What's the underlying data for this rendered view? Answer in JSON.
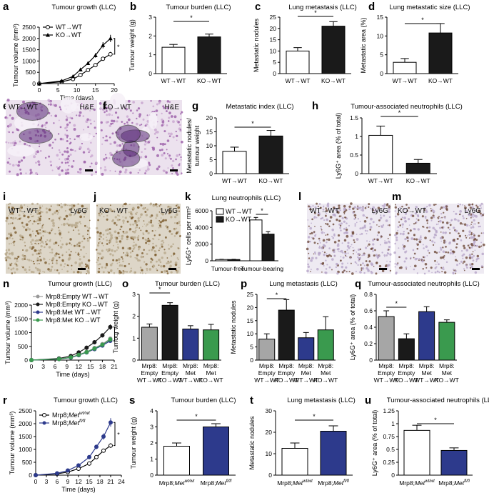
{
  "panels": {
    "a": {
      "label": "a",
      "chart_data": {
        "type": "line",
        "title": "Tumour growth (LLC)",
        "xlabel": "Time (days)",
        "ylabel": "Tumour volume (mm³)",
        "xlim": [
          0,
          20
        ],
        "ylim": [
          0,
          2500
        ],
        "xticks": [
          0,
          5,
          10,
          15,
          20
        ],
        "yticks": [
          0,
          500,
          1000,
          1500,
          2000,
          2500
        ],
        "series": [
          {
            "name": "WT→WT",
            "marker": "open-circle",
            "x": [
              0,
              6,
              9,
              11,
              13,
              15,
              17,
              19
            ],
            "y": [
              0,
              80,
              200,
              380,
              600,
              820,
              1100,
              1300
            ]
          },
          {
            "name": "KO→WT",
            "marker": "filled-triangle",
            "x": [
              0,
              6,
              9,
              11,
              13,
              15,
              17,
              19
            ],
            "y": [
              0,
              120,
              320,
              620,
              900,
              1250,
              1700,
              2000
            ]
          }
        ],
        "annotation": "*"
      }
    },
    "b": {
      "label": "b",
      "chart_data": {
        "type": "bar",
        "title": "Tumour burden (LLC)",
        "ylabel": "Tumour weight (g)",
        "categories": [
          "WT→WT",
          "KO→WT"
        ],
        "values": [
          1.4,
          1.95
        ],
        "errors": [
          0.15,
          0.15
        ],
        "colors": [
          "#ffffff",
          "#1a1a1a"
        ],
        "ylim": [
          0,
          3
        ],
        "yticks": [
          0,
          1,
          2,
          3
        ],
        "annotation": "*"
      }
    },
    "c": {
      "label": "c",
      "chart_data": {
        "type": "bar",
        "title": "Lung metastasis (LLC)",
        "ylabel": "Metastatic nodules",
        "categories": [
          "WT→WT",
          "KO→WT"
        ],
        "values": [
          10,
          21
        ],
        "errors": [
          1.5,
          2
        ],
        "colors": [
          "#ffffff",
          "#1a1a1a"
        ],
        "ylim": [
          0,
          25
        ],
        "yticks": [
          0,
          5,
          10,
          15,
          20,
          25
        ],
        "annotation": "*"
      }
    },
    "d": {
      "label": "d",
      "chart_data": {
        "type": "bar",
        "title": "Lung metastatic size (LLC)",
        "ylabel": "Metastatic area (%)",
        "categories": [
          "WT→WT",
          "KO→WT"
        ],
        "values": [
          3,
          10.8
        ],
        "errors": [
          1,
          2.5
        ],
        "colors": [
          "#ffffff",
          "#1a1a1a"
        ],
        "ylim": [
          0,
          15
        ],
        "yticks": [
          0,
          5,
          10,
          15
        ],
        "annotation": "*"
      }
    },
    "e": {
      "label": "e",
      "left": "WT",
      "right": "WT",
      "stain": "H&E"
    },
    "f": {
      "label": "f",
      "left": "KO",
      "right": "WT",
      "stain": "H&E"
    },
    "g": {
      "label": "g",
      "chart_data": {
        "type": "bar",
        "title": "Metastatic index (LLC)",
        "ylabel": "Metastatic nodules/ tumour weight",
        "categories": [
          "WT→WT",
          "KO→WT"
        ],
        "values": [
          8,
          13.5
        ],
        "errors": [
          1.5,
          2
        ],
        "colors": [
          "#ffffff",
          "#1a1a1a"
        ],
        "ylim": [
          0,
          20
        ],
        "yticks": [
          0,
          5,
          10,
          15,
          20
        ],
        "annotation": "*"
      }
    },
    "h": {
      "label": "h",
      "chart_data": {
        "type": "bar",
        "title": "Tumour-associated neutrophils (LLC)",
        "ylabel": "Ly6G⁺ area (% of total)",
        "categories": [
          "WT→WT",
          "KO→WT"
        ],
        "values": [
          1.03,
          0.28
        ],
        "errors": [
          0.25,
          0.1
        ],
        "colors": [
          "#ffffff",
          "#1a1a1a"
        ],
        "ylim": [
          0,
          1.5
        ],
        "yticks": [
          0,
          0.5,
          1.0,
          1.5
        ],
        "annotation": "*"
      }
    },
    "i": {
      "label": "i",
      "left": "WT",
      "right": "WT",
      "stain": "Ly6G"
    },
    "j": {
      "label": "j",
      "left": "KO",
      "right": "WT",
      "stain": "Ly6G"
    },
    "k": {
      "label": "k",
      "chart_data": {
        "type": "bar",
        "title": "Lung neutrophils (LLC)",
        "ylabel": "Ly6G⁺ cells per mm²",
        "categories": [
          "Tumour-free",
          "Tumour-bearing"
        ],
        "series": [
          {
            "name": "WT→WT",
            "color": "#ffffff",
            "values": [
              150,
              4900
            ],
            "errors": [
              30,
              300
            ]
          },
          {
            "name": "KO→WT",
            "color": "#1a1a1a",
            "values": [
              150,
              3200
            ],
            "errors": [
              30,
              300
            ]
          }
        ],
        "ylim": [
          0,
          6000
        ],
        "yticks": [
          0,
          2000,
          4000,
          6000
        ],
        "annotation": "*"
      }
    },
    "l": {
      "label": "l",
      "left": "WT",
      "right": "WT",
      "stain": "Ly6G"
    },
    "m": {
      "label": "m",
      "left": "KO",
      "right": "WT",
      "stain": "Ly6G"
    },
    "n": {
      "label": "n",
      "chart_data": {
        "type": "line",
        "title": "Tumour growth (LLC)",
        "xlabel": "Time (days)",
        "ylabel": "Tumour volume (mm³)",
        "xlim": [
          0,
          21
        ],
        "ylim": [
          0,
          2000
        ],
        "xticks": [
          0,
          3,
          6,
          9,
          12,
          15,
          18,
          21
        ],
        "yticks": [
          0,
          500,
          1000,
          1500,
          2000
        ],
        "series": [
          {
            "name": "Mrp8:Empty WT→WT",
            "color": "#999999",
            "x": [
              0,
              7,
              10,
              12,
              14,
              16,
              18,
              20
            ],
            "y": [
              0,
              40,
              100,
              200,
              300,
              440,
              580,
              780
            ]
          },
          {
            "name": "Mrp8:Empty KO→WT",
            "color": "#1a1a1a",
            "x": [
              0,
              7,
              10,
              12,
              14,
              16,
              18,
              20
            ],
            "y": [
              0,
              60,
              150,
              280,
              450,
              650,
              900,
              1200
            ]
          },
          {
            "name": "Mrp8:Met WT→WT",
            "color": "#2d3a8c",
            "x": [
              0,
              7,
              10,
              12,
              14,
              16,
              18,
              20
            ],
            "y": [
              0,
              40,
              90,
              180,
              280,
              400,
              530,
              700
            ]
          },
          {
            "name": "Mrp8:Met KO→WT",
            "color": "#3a9a4e",
            "x": [
              0,
              7,
              10,
              12,
              14,
              16,
              18,
              20
            ],
            "y": [
              0,
              40,
              100,
              190,
              290,
              420,
              560,
              750
            ]
          }
        ],
        "annotation": "*"
      }
    },
    "o": {
      "label": "o",
      "chart_data": {
        "type": "bar",
        "title": "Tumour burden (LLC)",
        "ylabel": "Tumour weight (g)",
        "categories": [
          "Mrp8: Empty WT→WT",
          "Mrp8: Empty KO→WT",
          "Mrp8: Met WT→WT",
          "Mrp8: Met KO→WT"
        ],
        "values": [
          1.5,
          2.5,
          1.42,
          1.38
        ],
        "errors": [
          0.15,
          0.12,
          0.15,
          0.25
        ],
        "colors": [
          "#a6a6a6",
          "#1a1a1a",
          "#2d3a8c",
          "#3a9a4e"
        ],
        "ylim": [
          0,
          3
        ],
        "yticks": [
          0,
          1,
          2,
          3
        ],
        "annotation": "*"
      }
    },
    "p": {
      "label": "p",
      "chart_data": {
        "type": "bar",
        "title": "Lung metastasis (LLC)",
        "ylabel": "Metastatic nodules",
        "categories": [
          "Mrp8: Empty WT→WT",
          "Mrp8: Empty KO→WT",
          "Mrp8: Met WT→WT",
          "Mrp8: Met KO→WT"
        ],
        "values": [
          8,
          19,
          8.5,
          11.5
        ],
        "errors": [
          2,
          4,
          2,
          5
        ],
        "colors": [
          "#a6a6a6",
          "#1a1a1a",
          "#2d3a8c",
          "#3a9a4e"
        ],
        "ylim": [
          0,
          25
        ],
        "yticks": [
          0,
          5,
          10,
          15,
          20,
          25
        ],
        "annotation": "*"
      }
    },
    "q": {
      "label": "q",
      "chart_data": {
        "type": "bar",
        "title": "Tumour-associated neutrophils (LLC)",
        "ylabel": "Ly6G⁺ area (% of total)",
        "categories": [
          "Mrp8: Empty WT→WT",
          "Mrp8: Empty KO→WT",
          "Mrp8: Met WT→WT",
          "Mrp8: Met KO→WT"
        ],
        "values": [
          0.53,
          0.26,
          0.59,
          0.46
        ],
        "errors": [
          0.07,
          0.06,
          0.06,
          0.03
        ],
        "colors": [
          "#a6a6a6",
          "#1a1a1a",
          "#2d3a8c",
          "#3a9a4e"
        ],
        "ylim": [
          0,
          0.8
        ],
        "yticks": [
          0,
          0.2,
          0.4,
          0.6,
          0.8
        ],
        "annotation": "*"
      }
    },
    "r": {
      "label": "r",
      "chart_data": {
        "type": "line",
        "title": "Tumour growth (LLC)",
        "xlabel": "Time (days)",
        "ylabel": "Tumour volume (mm³)",
        "xlim": [
          0,
          24
        ],
        "ylim": [
          0,
          2500
        ],
        "xticks": [
          0,
          3,
          6,
          9,
          12,
          15,
          18,
          21,
          24
        ],
        "yticks": [
          0,
          500,
          1000,
          1500,
          2000,
          2500
        ],
        "series": [
          {
            "name": "Mrp8;Met",
            "sup": "wt/wt",
            "marker": "open-circle",
            "color": "#000000",
            "x": [
              0,
              6,
              9,
              12,
              15,
              17,
              19,
              21
            ],
            "y": [
              0,
              50,
              120,
              250,
              450,
              700,
              950,
              1150
            ]
          },
          {
            "name": "Mrp8;Met",
            "sup": "fl/fl",
            "marker": "filled-circle",
            "color": "#2d3a8c",
            "x": [
              0,
              6,
              9,
              12,
              15,
              17,
              19,
              21
            ],
            "y": [
              0,
              70,
              180,
              380,
              700,
              1100,
              1500,
              2050
            ]
          }
        ],
        "annotation": "*"
      }
    },
    "s": {
      "label": "s",
      "chart_data": {
        "type": "bar",
        "title": "Tumour burden (LLC)",
        "ylabel": "Tumour weight (g)",
        "categories": [
          "Mrp8;Met",
          "Mrp8;Met"
        ],
        "category_sup": [
          "wt/wt",
          "fl/fl"
        ],
        "values": [
          1.8,
          3.0
        ],
        "errors": [
          0.2,
          0.2
        ],
        "colors": [
          "#ffffff",
          "#2d3a8c"
        ],
        "ylim": [
          0,
          4
        ],
        "yticks": [
          0,
          1,
          2,
          3,
          4
        ],
        "annotation": "*"
      }
    },
    "t": {
      "label": "t",
      "chart_data": {
        "type": "bar",
        "title": "Lung metastasis (LLC)",
        "ylabel": "Metastatic nodules",
        "categories": [
          "Mrp8;Met",
          "Mrp8;Met"
        ],
        "category_sup": [
          "wt/wt",
          "fl/fl"
        ],
        "values": [
          12.5,
          20.5
        ],
        "errors": [
          2.5,
          2.5
        ],
        "colors": [
          "#ffffff",
          "#2d3a8c"
        ],
        "ylim": [
          0,
          30
        ],
        "yticks": [
          0,
          10,
          20,
          30
        ],
        "annotation": "*"
      }
    },
    "u": {
      "label": "u",
      "chart_data": {
        "type": "bar",
        "title": "Tumour-associated neutrophils (LLC)",
        "ylabel": "Ly6G⁺ area (% of total)",
        "categories": [
          "Mrp8;Met",
          "Mrp8;Met"
        ],
        "category_sup": [
          "wt/wt",
          "fl/fl"
        ],
        "values": [
          0.87,
          0.48
        ],
        "errors": [
          0.1,
          0.05
        ],
        "colors": [
          "#ffffff",
          "#2d3a8c"
        ],
        "ylim": [
          0,
          1.25
        ],
        "yticks": [
          0,
          0.25,
          0.5,
          0.75,
          1.0,
          1.25
        ],
        "annotation": "*"
      }
    }
  }
}
